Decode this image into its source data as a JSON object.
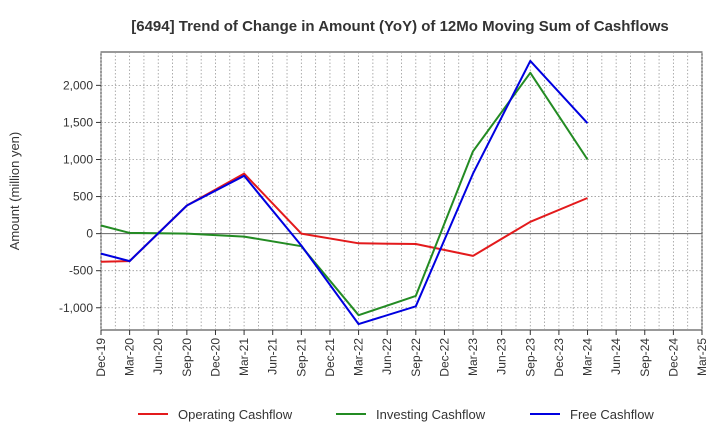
{
  "chart_data": {
    "type": "line",
    "title": "[6494]  Trend of Change in Amount (YoY) of 12Mo Moving Sum of Cashflows",
    "xlabel": "",
    "ylabel": "Amount (million yen)",
    "ylim": [
      -1300,
      2450
    ],
    "yticks": [
      -1000,
      -500,
      0,
      500,
      1000,
      1500,
      2000
    ],
    "ytick_labels": [
      "-1,000",
      "-500",
      "0",
      "500",
      "1,000",
      "1,500",
      "2,000"
    ],
    "categories": [
      "Dec-19",
      "Mar-20",
      "Jun-20",
      "Sep-20",
      "Dec-20",
      "Mar-21",
      "Jun-21",
      "Sep-21",
      "Dec-21",
      "Mar-22",
      "Jun-22",
      "Sep-22",
      "Dec-22",
      "Mar-23",
      "Jun-23",
      "Sep-23",
      "Dec-23",
      "Mar-24",
      "Jun-24",
      "Sep-24",
      "Dec-24",
      "Mar-25"
    ],
    "grid": true,
    "legend_position": "bottom",
    "series": [
      {
        "name": "Operating Cashflow",
        "color": "#e31a1c",
        "values": [
          -380,
          -370,
          null,
          380,
          null,
          810,
          null,
          0,
          null,
          -130,
          null,
          -140,
          null,
          -300,
          null,
          160,
          null,
          480,
          null,
          null,
          null,
          null
        ]
      },
      {
        "name": "Investing Cashflow",
        "color": "#238b23",
        "values": [
          110,
          10,
          null,
          0,
          null,
          -40,
          null,
          -170,
          null,
          -1100,
          null,
          -840,
          null,
          1110,
          null,
          2170,
          null,
          1000,
          null,
          null,
          null,
          null
        ]
      },
      {
        "name": "Free Cashflow",
        "color": "#0000e0",
        "values": [
          -270,
          -370,
          null,
          380,
          null,
          780,
          null,
          -160,
          null,
          -1220,
          null,
          -980,
          null,
          810,
          null,
          2330,
          null,
          1490,
          null,
          null,
          null,
          null
        ]
      }
    ]
  }
}
